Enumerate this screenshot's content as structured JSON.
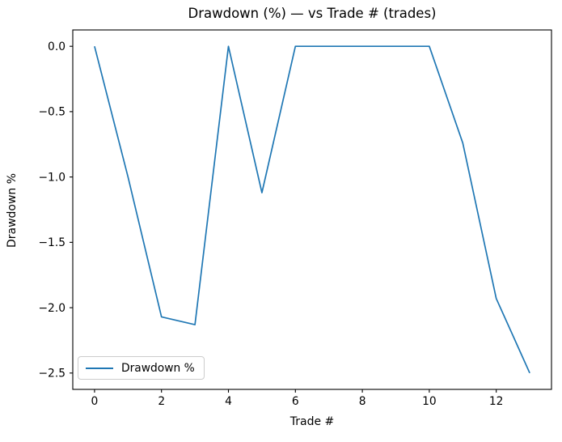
{
  "chart_data": {
    "type": "line",
    "title": "Drawdown (%) — vs Trade # (trades)",
    "xlabel": "Trade #",
    "ylabel": "Drawdown %",
    "x": [
      0,
      1,
      2,
      3,
      4,
      5,
      6,
      7,
      8,
      9,
      10,
      11,
      12,
      13
    ],
    "series": [
      {
        "name": "Drawdown %",
        "color": "#1f77b4",
        "values": [
          0.0,
          -1.0,
          -2.07,
          -2.13,
          0.0,
          -1.12,
          0.0,
          0.0,
          0.0,
          0.0,
          0.0,
          -0.74,
          -1.93,
          -2.5
        ]
      }
    ],
    "xticks": [
      0,
      2,
      4,
      6,
      8,
      10,
      12
    ],
    "yticks": [
      0.0,
      -0.5,
      -1.0,
      -1.5,
      -2.0,
      -2.5
    ],
    "xlim": [
      -0.65,
      13.65
    ],
    "ylim": [
      -2.625,
      0.125
    ],
    "grid": false,
    "legend": {
      "position": "lower left",
      "entries": [
        "Drawdown %"
      ]
    },
    "colors": {
      "line": "#1f77b4",
      "frame": "#000000",
      "legend_border": "#cccccc"
    }
  }
}
